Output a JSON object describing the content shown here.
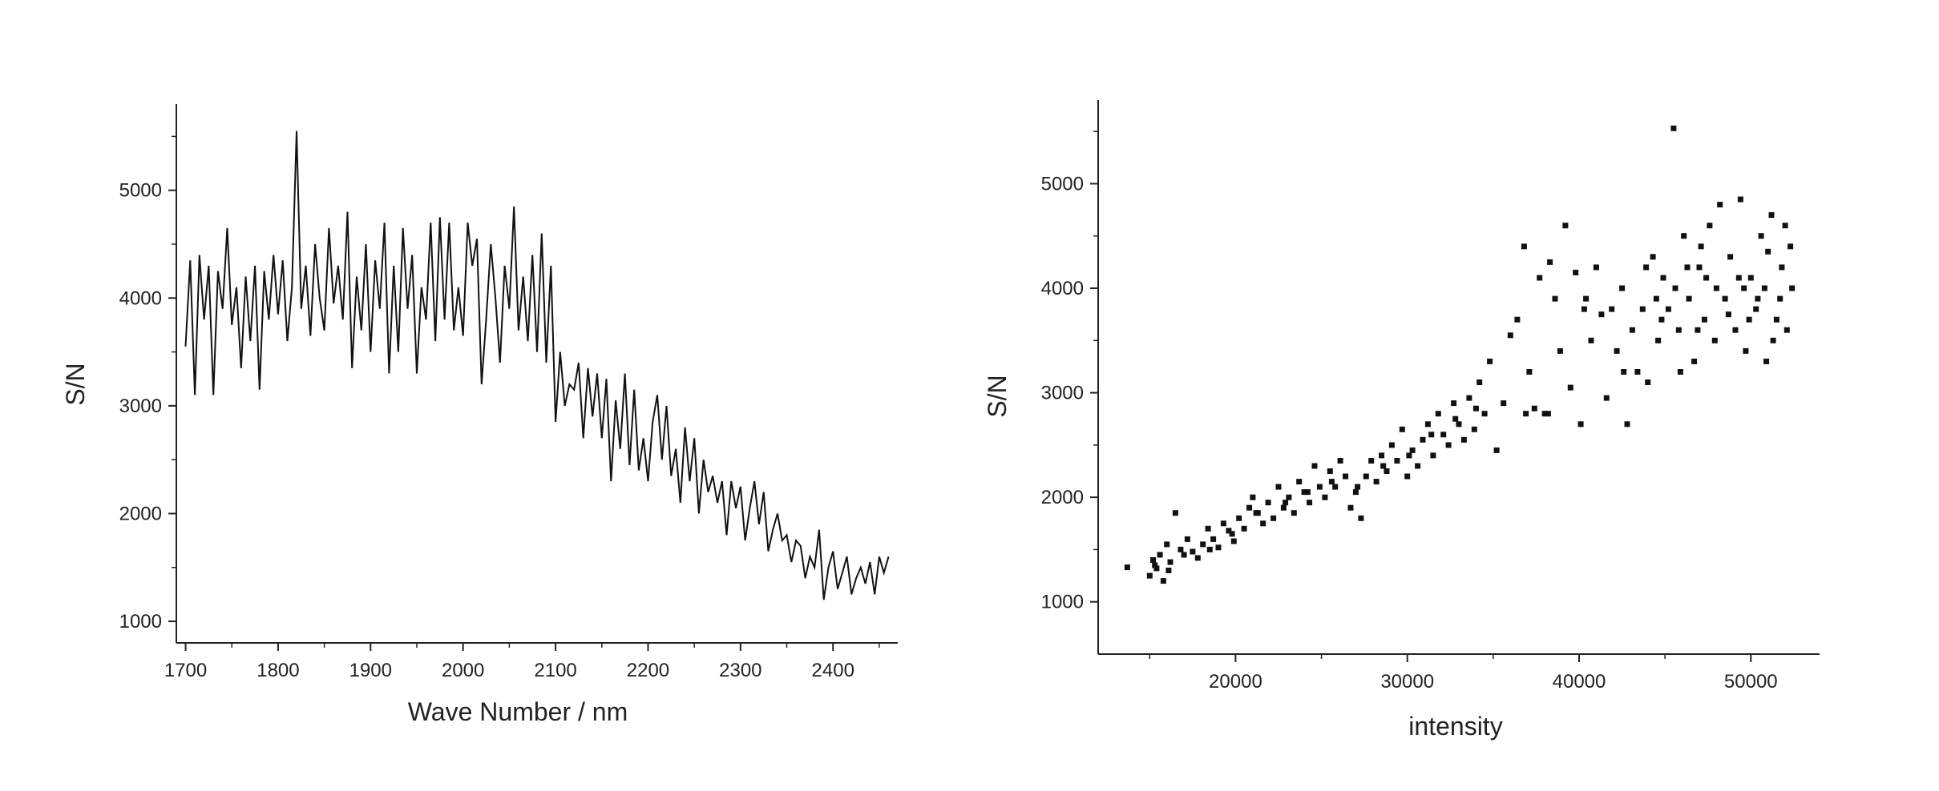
{
  "chart_data": [
    {
      "type": "line",
      "title": "",
      "xlabel": "Wave Number / nm",
      "ylabel": "S/N",
      "xlim": [
        1690,
        2470
      ],
      "ylim": [
        800,
        5800
      ],
      "x_ticks": [
        1700,
        1800,
        1900,
        2000,
        2100,
        2200,
        2300,
        2400
      ],
      "y_ticks": [
        1000,
        2000,
        3000,
        4000,
        5000
      ],
      "grid": false,
      "series": [
        {
          "x": [
            1700,
            1705,
            1710,
            1715,
            1720,
            1725,
            1730,
            1735,
            1740,
            1745,
            1750,
            1755,
            1760,
            1765,
            1770,
            1775,
            1780,
            1785,
            1790,
            1795,
            1800,
            1805,
            1810,
            1815,
            1820,
            1825,
            1830,
            1835,
            1840,
            1845,
            1850,
            1855,
            1860,
            1865,
            1870,
            1875,
            1880,
            1885,
            1890,
            1895,
            1900,
            1905,
            1910,
            1915,
            1920,
            1925,
            1930,
            1935,
            1940,
            1945,
            1950,
            1955,
            1960,
            1965,
            1970,
            1975,
            1980,
            1985,
            1990,
            1995,
            2000,
            2005,
            2010,
            2015,
            2020,
            2025,
            2030,
            2035,
            2040,
            2045,
            2050,
            2055,
            2060,
            2065,
            2070,
            2075,
            2080,
            2085,
            2090,
            2095,
            2100,
            2105,
            2110,
            2115,
            2120,
            2125,
            2130,
            2135,
            2140,
            2145,
            2150,
            2155,
            2160,
            2165,
            2170,
            2175,
            2180,
            2185,
            2190,
            2195,
            2200,
            2205,
            2210,
            2215,
            2220,
            2225,
            2230,
            2235,
            2240,
            2245,
            2250,
            2255,
            2260,
            2265,
            2270,
            2275,
            2280,
            2285,
            2290,
            2295,
            2300,
            2305,
            2310,
            2315,
            2320,
            2325,
            2330,
            2335,
            2340,
            2345,
            2350,
            2355,
            2360,
            2365,
            2370,
            2375,
            2380,
            2385,
            2390,
            2395,
            2400,
            2405,
            2410,
            2415,
            2420,
            2425,
            2430,
            2435,
            2440,
            2445,
            2450,
            2455,
            2460
          ],
          "y": [
            3550,
            4350,
            3100,
            4400,
            3800,
            4300,
            3100,
            4250,
            3900,
            4650,
            3750,
            4100,
            3350,
            4200,
            3600,
            4300,
            3150,
            4250,
            3800,
            4400,
            3850,
            4350,
            3600,
            4100,
            5550,
            3900,
            4300,
            3650,
            4500,
            4000,
            3700,
            4650,
            3950,
            4300,
            3800,
            4800,
            3350,
            4200,
            3700,
            4500,
            3500,
            4350,
            3900,
            4700,
            3300,
            4300,
            3500,
            4650,
            3900,
            4400,
            3300,
            4100,
            3800,
            4700,
            3600,
            4750,
            3800,
            4700,
            3700,
            4100,
            3650,
            4700,
            4300,
            4550,
            3200,
            3800,
            4500,
            4000,
            3400,
            4300,
            3900,
            4850,
            3700,
            4200,
            3600,
            4400,
            3500,
            4600,
            3400,
            4300,
            2850,
            3500,
            3000,
            3200,
            3150,
            3400,
            2700,
            3350,
            2900,
            3300,
            2700,
            3250,
            2300,
            3050,
            2600,
            3300,
            2450,
            3150,
            2400,
            2700,
            2300,
            2850,
            3100,
            2500,
            3000,
            2350,
            2600,
            2100,
            2800,
            2300,
            2700,
            2000,
            2500,
            2200,
            2350,
            2100,
            2300,
            1800,
            2300,
            2050,
            2250,
            1750,
            2050,
            2300,
            1900,
            2200,
            1650,
            1850,
            2000,
            1750,
            1800,
            1550,
            1750,
            1700,
            1400,
            1600,
            1500,
            1850,
            1200,
            1500,
            1650,
            1300,
            1450,
            1600,
            1250,
            1400,
            1500,
            1350,
            1550,
            1250,
            1600,
            1450,
            1600
          ]
        }
      ]
    },
    {
      "type": "scatter",
      "title": "",
      "xlabel": "intensity",
      "ylabel": "S/N",
      "xlim": [
        12000,
        54000
      ],
      "ylim": [
        500,
        5800
      ],
      "x_ticks": [
        20000,
        30000,
        40000,
        50000
      ],
      "y_ticks": [
        1000,
        2000,
        3000,
        4000,
        5000
      ],
      "grid": false,
      "series": [
        {
          "points": [
            [
              13700,
              1330
            ],
            [
              15000,
              1250
            ],
            [
              15200,
              1400
            ],
            [
              15400,
              1320
            ],
            [
              15600,
              1450
            ],
            [
              15800,
              1200
            ],
            [
              16000,
              1550
            ],
            [
              16200,
              1380
            ],
            [
              16500,
              1850
            ],
            [
              16800,
              1500
            ],
            [
              17200,
              1600
            ],
            [
              17500,
              1480
            ],
            [
              17800,
              1420
            ],
            [
              18100,
              1550
            ],
            [
              18400,
              1700
            ],
            [
              18700,
              1600
            ],
            [
              19000,
              1520
            ],
            [
              19300,
              1750
            ],
            [
              19600,
              1680
            ],
            [
              19900,
              1580
            ],
            [
              20200,
              1800
            ],
            [
              20500,
              1700
            ],
            [
              20800,
              1900
            ],
            [
              21000,
              2000
            ],
            [
              21300,
              1850
            ],
            [
              21600,
              1750
            ],
            [
              21900,
              1950
            ],
            [
              22200,
              1800
            ],
            [
              22500,
              2100
            ],
            [
              22800,
              1900
            ],
            [
              23100,
              2000
            ],
            [
              23400,
              1850
            ],
            [
              23700,
              2150
            ],
            [
              24000,
              2050
            ],
            [
              24300,
              1950
            ],
            [
              24600,
              2300
            ],
            [
              24900,
              2100
            ],
            [
              25200,
              2000
            ],
            [
              25500,
              2250
            ],
            [
              25800,
              2100
            ],
            [
              26100,
              2350
            ],
            [
              26400,
              2200
            ],
            [
              26700,
              1900
            ],
            [
              27000,
              2050
            ],
            [
              27300,
              1800
            ],
            [
              27600,
              2200
            ],
            [
              27900,
              2350
            ],
            [
              28200,
              2150
            ],
            [
              28500,
              2400
            ],
            [
              28800,
              2250
            ],
            [
              29100,
              2500
            ],
            [
              29400,
              2350
            ],
            [
              29700,
              2650
            ],
            [
              30000,
              2200
            ],
            [
              30300,
              2450
            ],
            [
              30600,
              2300
            ],
            [
              30900,
              2550
            ],
            [
              31200,
              2700
            ],
            [
              31500,
              2400
            ],
            [
              31800,
              2800
            ],
            [
              32100,
              2600
            ],
            [
              32400,
              2500
            ],
            [
              32700,
              2900
            ],
            [
              33000,
              2700
            ],
            [
              33300,
              2550
            ],
            [
              33600,
              2950
            ],
            [
              33900,
              2650
            ],
            [
              34200,
              3100
            ],
            [
              34500,
              2800
            ],
            [
              34800,
              3300
            ],
            [
              35200,
              2450
            ],
            [
              35600,
              2900
            ],
            [
              36000,
              3550
            ],
            [
              36400,
              3700
            ],
            [
              36800,
              4400
            ],
            [
              37100,
              3200
            ],
            [
              37400,
              2850
            ],
            [
              37700,
              4100
            ],
            [
              38000,
              2800
            ],
            [
              38300,
              4250
            ],
            [
              38600,
              3900
            ],
            [
              38900,
              3400
            ],
            [
              39200,
              4600
            ],
            [
              39500,
              3050
            ],
            [
              39800,
              4150
            ],
            [
              40100,
              2700
            ],
            [
              40400,
              3900
            ],
            [
              40700,
              3500
            ],
            [
              41000,
              4200
            ],
            [
              41300,
              3750
            ],
            [
              41600,
              2950
            ],
            [
              41900,
              3800
            ],
            [
              42200,
              3400
            ],
            [
              42500,
              4000
            ],
            [
              42800,
              2700
            ],
            [
              43100,
              3600
            ],
            [
              43400,
              3200
            ],
            [
              43700,
              3800
            ],
            [
              44000,
              3100
            ],
            [
              44300,
              4300
            ],
            [
              44600,
              3500
            ],
            [
              44900,
              4100
            ],
            [
              45200,
              3800
            ],
            [
              45500,
              5530
            ],
            [
              45800,
              3600
            ],
            [
              46100,
              4500
            ],
            [
              46400,
              3900
            ],
            [
              46700,
              3300
            ],
            [
              47000,
              4200
            ],
            [
              47300,
              3700
            ],
            [
              47600,
              4600
            ],
            [
              47900,
              3500
            ],
            [
              48200,
              4800
            ],
            [
              48500,
              3900
            ],
            [
              48800,
              4300
            ],
            [
              49100,
              3600
            ],
            [
              49400,
              4850
            ],
            [
              49700,
              3400
            ],
            [
              50000,
              4100
            ],
            [
              50300,
              3800
            ],
            [
              50600,
              4500
            ],
            [
              50900,
              3300
            ],
            [
              51200,
              4700
            ],
            [
              51500,
              3700
            ],
            [
              51800,
              4200
            ],
            [
              52100,
              3600
            ],
            [
              52400,
              4000
            ],
            [
              15300,
              1350
            ],
            [
              16100,
              1300
            ],
            [
              17000,
              1450
            ],
            [
              18500,
              1500
            ],
            [
              19800,
              1650
            ],
            [
              21200,
              1850
            ],
            [
              22900,
              1950
            ],
            [
              24200,
              2050
            ],
            [
              25600,
              2150
            ],
            [
              27100,
              2100
            ],
            [
              28600,
              2300
            ],
            [
              30100,
              2400
            ],
            [
              31400,
              2600
            ],
            [
              32800,
              2750
            ],
            [
              34000,
              2850
            ],
            [
              36900,
              2800
            ],
            [
              38200,
              2800
            ],
            [
              40300,
              3800
            ],
            [
              42600,
              3200
            ],
            [
              44500,
              3900
            ],
            [
              46300,
              4200
            ],
            [
              48000,
              4000
            ],
            [
              49900,
              3700
            ],
            [
              51700,
              3900
            ],
            [
              45600,
              4000
            ],
            [
              47400,
              4100
            ],
            [
              49300,
              4100
            ],
            [
              51000,
              4350
            ],
            [
              46900,
              3600
            ],
            [
              48700,
              3750
            ],
            [
              50400,
              3900
            ],
            [
              52300,
              4400
            ],
            [
              44800,
              3700
            ],
            [
              43900,
              4200
            ],
            [
              47100,
              4400
            ],
            [
              49600,
              4000
            ],
            [
              51300,
              3500
            ],
            [
              52000,
              4600
            ],
            [
              45900,
              3200
            ],
            [
              50800,
              4000
            ]
          ]
        }
      ]
    }
  ]
}
